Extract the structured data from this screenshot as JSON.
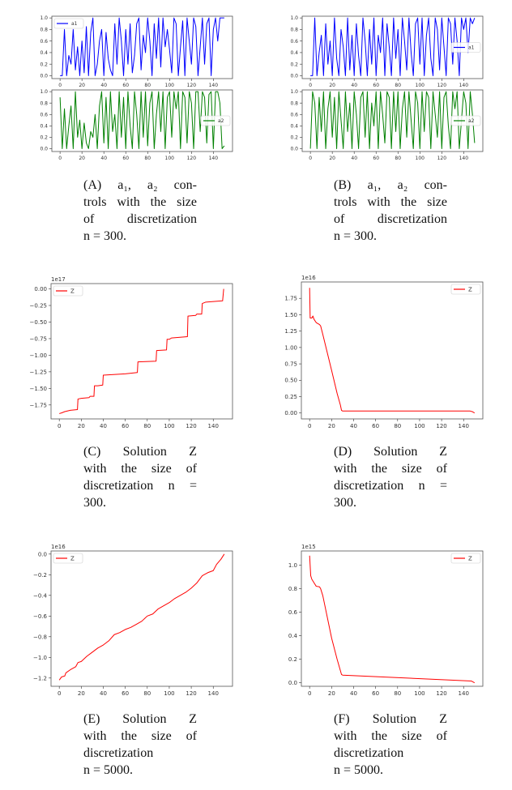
{
  "captions": [
    {
      "id": "A",
      "lines": [
        "(A) a₁, a₂ con-",
        "trols with the size",
        "of discretization",
        "n = 300."
      ]
    },
    {
      "id": "B",
      "lines": [
        "(B) a₁, a₂ con-",
        "trols with the size",
        "of discretization",
        "n = 300."
      ]
    },
    {
      "id": "C",
      "lines": [
        "(C) Solution Z",
        "with the size of",
        "discretization n =",
        "300."
      ]
    },
    {
      "id": "D",
      "lines": [
        "(D) Solution Z",
        "with the size of",
        "discretization n =",
        "300."
      ]
    },
    {
      "id": "E",
      "lines": [
        "(E) Solution Z",
        "with the size of",
        "discretization",
        "n = 5000."
      ]
    },
    {
      "id": "F",
      "lines": [
        "(F) Solution Z",
        "with the size of",
        "discretization",
        "n = 5000."
      ]
    }
  ],
  "chart_data": [
    {
      "panel": "A-top",
      "type": "line",
      "xlim": [
        -7.5,
        157.5
      ],
      "ylim": [
        -0.05,
        1.03
      ],
      "xticks": [
        0,
        20,
        40,
        60,
        80,
        100,
        120,
        140
      ],
      "yticks": [
        0.0,
        0.2,
        0.4,
        0.6,
        0.8,
        1.0
      ],
      "ytick_decimals": 1,
      "offset_text": "",
      "legend": "upper-left",
      "grid": false,
      "series": [
        {
          "name": "a1",
          "color": "#0000ff",
          "x_start": 0,
          "x_end": 150,
          "y": [
            0,
            0,
            0.8,
            0,
            0.35,
            0.2,
            0.8,
            0.1,
            0.5,
            0,
            0.6,
            0.05,
            0.85,
            0,
            0.75,
            1,
            0,
            0.2,
            0.6,
            0.8,
            0,
            0.75,
            0.3,
            0.1,
            0,
            0.9,
            0.2,
            1,
            0.6,
            0,
            0.8,
            0.2,
            0.9,
            0.05,
            0.35,
            0.9,
            1,
            0.1,
            0.7,
            0.4,
            1,
            0.6,
            0,
            0.9,
            0.3,
            1,
            0.15,
            1,
            0.5,
            0.8,
            0.45,
            0.05,
            1,
            0.9,
            0,
            0.5,
            0.95,
            0,
            1,
            0.6,
            0.2,
            1,
            0.85,
            0,
            0.5,
            1,
            0.2,
            0.9,
            1,
            0,
            0.8,
            1,
            0.6,
            1,
            1,
            1
          ]
        }
      ]
    },
    {
      "panel": "A-bottom",
      "type": "line",
      "xlim": [
        -7.5,
        157.5
      ],
      "ylim": [
        -0.05,
        1.03
      ],
      "xticks": [
        0,
        20,
        40,
        60,
        80,
        100,
        120,
        140
      ],
      "yticks": [
        0.0,
        0.2,
        0.4,
        0.6,
        0.8,
        1.0
      ],
      "ytick_decimals": 1,
      "offset_text": "",
      "legend": "center-right",
      "grid": false,
      "series": [
        {
          "name": "a2",
          "color": "#008000",
          "x_start": 0,
          "x_end": 150,
          "y": [
            0.9,
            0,
            0.7,
            0,
            0.4,
            0.75,
            0,
            1,
            0.2,
            0.5,
            0,
            0.45,
            0.1,
            0,
            0.3,
            0.2,
            0.6,
            0,
            0.75,
            1,
            0.1,
            0.9,
            0,
            1,
            0.3,
            0.6,
            0,
            1,
            0.2,
            0.9,
            0,
            1,
            0.4,
            0,
            1,
            0.6,
            0,
            1,
            0.2,
            1,
            0.05,
            0.8,
            1,
            0,
            0.6,
            1,
            0.3,
            1,
            0,
            0.9,
            1,
            0.2,
            1,
            0.7,
            1,
            0,
            1,
            0.9,
            0.1,
            1,
            0.8,
            0,
            1,
            1,
            0.3,
            1,
            0.9,
            0.1,
            0.95,
            1,
            0,
            1,
            1,
            0.8,
            0,
            0.05
          ]
        }
      ]
    },
    {
      "panel": "B-top",
      "type": "line",
      "xlim": [
        -7.5,
        157.5
      ],
      "ylim": [
        -0.05,
        1.03
      ],
      "xticks": [
        0,
        20,
        40,
        60,
        80,
        100,
        120,
        140
      ],
      "yticks": [
        0.0,
        0.2,
        0.4,
        0.6,
        0.8,
        1.0
      ],
      "ytick_decimals": 1,
      "offset_text": "",
      "legend": "center-right",
      "grid": false,
      "series": [
        {
          "name": "a1",
          "color": "#0000ff",
          "x_start": 0,
          "x_end": 150,
          "y": [
            0,
            0,
            1,
            0,
            0.4,
            0.7,
            0,
            0.9,
            0.2,
            0.6,
            0,
            1,
            0.3,
            0,
            0.8,
            0.5,
            0,
            1,
            0.1,
            0.7,
            0,
            0.9,
            0.35,
            0,
            1,
            0.6,
            0,
            0.8,
            0.2,
            1,
            0,
            0.7,
            0.4,
            1,
            0,
            0.9,
            0.5,
            0,
            1,
            0.3,
            0.8,
            0,
            1,
            0.6,
            0.1,
            1,
            0.4,
            0,
            0.9,
            1,
            0.2,
            1,
            0,
            0.7,
            1,
            0.3,
            0,
            1,
            0.8,
            0.1,
            1,
            0.5,
            0,
            1,
            0.9,
            0.2,
            1,
            0.6,
            0,
            1,
            0.8,
            1,
            0.4,
            1,
            0.9,
            1
          ]
        }
      ]
    },
    {
      "panel": "B-bottom",
      "type": "line",
      "xlim": [
        -7.5,
        157.5
      ],
      "ylim": [
        -0.05,
        1.03
      ],
      "xticks": [
        0,
        20,
        40,
        60,
        80,
        100,
        120,
        140
      ],
      "yticks": [
        0.0,
        0.2,
        0.4,
        0.6,
        0.8,
        1.0
      ],
      "ytick_decimals": 1,
      "offset_text": "",
      "legend": "center-right",
      "grid": false,
      "series": [
        {
          "name": "a2",
          "color": "#008000",
          "x_start": 0,
          "x_end": 150,
          "y": [
            0,
            1,
            0.8,
            0,
            0.9,
            0.3,
            1,
            0,
            0.7,
            1,
            0.2,
            0.9,
            0,
            1,
            0.5,
            0,
            1,
            0.3,
            0.8,
            0,
            1,
            0.6,
            0,
            0.9,
            1,
            0.2,
            1,
            0,
            0.8,
            0.4,
            1,
            0,
            1,
            0.6,
            0.1,
            1,
            0.9,
            0,
            1,
            0.3,
            1,
            0,
            0.7,
            1,
            0.2,
            1,
            0.5,
            0,
            1,
            0.8,
            0,
            1,
            0.3,
            1,
            0.9,
            0,
            1,
            0.6,
            0.2,
            1,
            0,
            0.9,
            1,
            0.4,
            0,
            1,
            0.7,
            1,
            0,
            0.5,
            1,
            0.8,
            0,
            1,
            0.6,
            0.1
          ]
        }
      ]
    },
    {
      "panel": "C",
      "type": "line",
      "xlim": [
        -7.5,
        157.5
      ],
      "ylim": [
        -1.96,
        0.08
      ],
      "xticks": [
        0,
        20,
        40,
        60,
        80,
        100,
        120,
        140
      ],
      "yticks": [
        0.0,
        -0.25,
        -0.5,
        -0.75,
        -1.0,
        -1.25,
        -1.5,
        -1.75
      ],
      "ytick_decimals": 2,
      "offset_text": "1e17",
      "legend": "upper-left",
      "grid": false,
      "series": [
        {
          "name": "Z",
          "color": "#ff0000",
          "points": [
            [
              0,
              -1.88
            ],
            [
              2,
              -1.87
            ],
            [
              5,
              -1.85
            ],
            [
              10,
              -1.83
            ],
            [
              16.5,
              -1.82
            ],
            [
              17,
              -1.66
            ],
            [
              20,
              -1.65
            ],
            [
              27,
              -1.64
            ],
            [
              28,
              -1.62
            ],
            [
              31.5,
              -1.62
            ],
            [
              32,
              -1.46
            ],
            [
              35,
              -1.46
            ],
            [
              39.5,
              -1.45
            ],
            [
              40,
              -1.3
            ],
            [
              60,
              -1.28
            ],
            [
              71,
              -1.26
            ],
            [
              71.5,
              -1.1
            ],
            [
              88,
              -1.09
            ],
            [
              88.5,
              -0.93
            ],
            [
              97.5,
              -0.92
            ],
            [
              98,
              -0.76
            ],
            [
              100,
              -0.76
            ],
            [
              102,
              -0.74
            ],
            [
              116.5,
              -0.72
            ],
            [
              117,
              -0.41
            ],
            [
              124,
              -0.4
            ],
            [
              125,
              -0.38
            ],
            [
              129.5,
              -0.38
            ],
            [
              130,
              -0.22
            ],
            [
              133,
              -0.2
            ],
            [
              148.5,
              -0.18
            ],
            [
              149.5,
              0.0
            ]
          ]
        }
      ]
    },
    {
      "panel": "D",
      "type": "line",
      "xlim": [
        -7.5,
        157.5
      ],
      "ylim": [
        -0.09,
        2.0
      ],
      "xticks": [
        0,
        20,
        40,
        60,
        80,
        100,
        120,
        140
      ],
      "yticks": [
        0.0,
        0.25,
        0.5,
        0.75,
        1.0,
        1.25,
        1.5,
        1.75
      ],
      "ytick_decimals": 2,
      "offset_text": "1e16",
      "legend": "upper-right",
      "grid": false,
      "series": [
        {
          "name": "Z",
          "color": "#ff0000",
          "points": [
            [
              0,
              1.91
            ],
            [
              0.5,
              1.45
            ],
            [
              2,
              1.45
            ],
            [
              3,
              1.48
            ],
            [
              4,
              1.43
            ],
            [
              6,
              1.38
            ],
            [
              9,
              1.35
            ],
            [
              10,
              1.33
            ],
            [
              12,
              1.2
            ],
            [
              20,
              0.65
            ],
            [
              25,
              0.3
            ],
            [
              28,
              0.12
            ],
            [
              29,
              0.04
            ],
            [
              30,
              0.03
            ],
            [
              146,
              0.03
            ],
            [
              148,
              0.02
            ],
            [
              150,
              0.0
            ]
          ]
        }
      ]
    },
    {
      "panel": "E",
      "type": "line",
      "xlim": [
        -7.5,
        157.5
      ],
      "ylim": [
        -1.28,
        0.03
      ],
      "xticks": [
        0,
        20,
        40,
        60,
        80,
        100,
        120,
        140
      ],
      "yticks": [
        0.0,
        -0.2,
        -0.4,
        -0.6,
        -0.8,
        -1.0,
        -1.2
      ],
      "ytick_decimals": 1,
      "offset_text": "1e16",
      "legend": "upper-left",
      "grid": false,
      "series": [
        {
          "name": "Z",
          "color": "#ff0000",
          "points": [
            [
              0,
              -1.22
            ],
            [
              2,
              -1.19
            ],
            [
              5,
              -1.18
            ],
            [
              6,
              -1.15
            ],
            [
              10,
              -1.12
            ],
            [
              15,
              -1.09
            ],
            [
              17,
              -1.05
            ],
            [
              20,
              -1.04
            ],
            [
              25,
              -0.99
            ],
            [
              30,
              -0.95
            ],
            [
              35,
              -0.91
            ],
            [
              40,
              -0.88
            ],
            [
              45,
              -0.84
            ],
            [
              50,
              -0.78
            ],
            [
              55,
              -0.76
            ],
            [
              60,
              -0.73
            ],
            [
              65,
              -0.71
            ],
            [
              70,
              -0.68
            ],
            [
              75,
              -0.65
            ],
            [
              80,
              -0.6
            ],
            [
              85,
              -0.58
            ],
            [
              90,
              -0.53
            ],
            [
              95,
              -0.5
            ],
            [
              100,
              -0.47
            ],
            [
              105,
              -0.43
            ],
            [
              110,
              -0.4
            ],
            [
              115,
              -0.37
            ],
            [
              120,
              -0.33
            ],
            [
              125,
              -0.28
            ],
            [
              130,
              -0.21
            ],
            [
              135,
              -0.18
            ],
            [
              140,
              -0.16
            ],
            [
              143,
              -0.1
            ],
            [
              147,
              -0.05
            ],
            [
              150,
              0.0
            ]
          ]
        }
      ]
    },
    {
      "panel": "F",
      "type": "line",
      "xlim": [
        -7.5,
        157.5
      ],
      "ylim": [
        -0.03,
        1.12
      ],
      "xticks": [
        0,
        20,
        40,
        60,
        80,
        100,
        120,
        140
      ],
      "yticks": [
        0.0,
        0.2,
        0.4,
        0.6,
        0.8,
        1.0
      ],
      "ytick_decimals": 1,
      "offset_text": "1e15",
      "legend": "upper-right",
      "grid": false,
      "series": [
        {
          "name": "Z",
          "color": "#ff0000",
          "points": [
            [
              0,
              1.08
            ],
            [
              1,
              0.91
            ],
            [
              2,
              0.88
            ],
            [
              4,
              0.85
            ],
            [
              6,
              0.82
            ],
            [
              9,
              0.815
            ],
            [
              10,
              0.8
            ],
            [
              12,
              0.74
            ],
            [
              20,
              0.38
            ],
            [
              25,
              0.2
            ],
            [
              29,
              0.07
            ],
            [
              30,
              0.065
            ],
            [
              147,
              0.015
            ],
            [
              150,
              0.0
            ]
          ]
        }
      ]
    }
  ]
}
